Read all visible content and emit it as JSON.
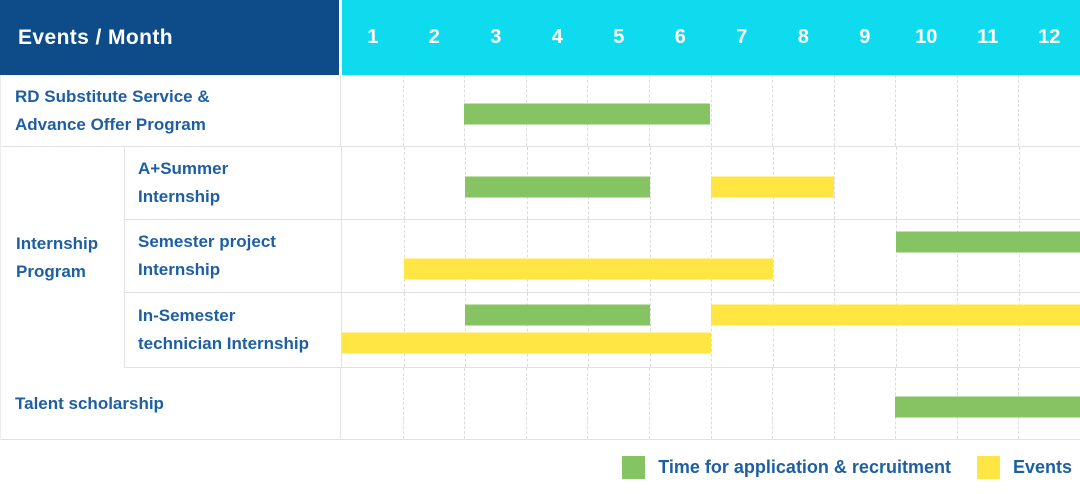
{
  "title": "Events / Month",
  "months": [
    "1",
    "2",
    "3",
    "4",
    "5",
    "6",
    "7",
    "8",
    "9",
    "10",
    "11",
    "12"
  ],
  "colors": {
    "header_navy": "#0d4c88",
    "header_cyan": "#0edcee",
    "text_blue": "#1e5fa4",
    "application_green": "#85c363",
    "event_yellow": "#ffe642",
    "gridline": "#dcdcdc"
  },
  "chart_data": {
    "type": "gantt",
    "title": "Events / Month",
    "x_axis": {
      "label": "Month",
      "ticks": [
        "1",
        "2",
        "3",
        "4",
        "5",
        "6",
        "7",
        "8",
        "9",
        "10",
        "11",
        "12"
      ],
      "range": [
        1,
        12
      ]
    },
    "grid": true,
    "legend_position": "bottom-right",
    "sections": [
      {
        "label_lines": [
          "RD Substitute Service &",
          "Advance Offer Program"
        ],
        "bars": [
          [
            {
              "kind": "application",
              "start": 3,
              "end": 6
            }
          ]
        ]
      },
      {
        "label_lines": [
          "Internship",
          "Program"
        ],
        "rows": [
          {
            "label_lines": [
              "A+Summer",
              "Internship"
            ],
            "bars": [
              [
                {
                  "kind": "application",
                  "start": 3,
                  "end": 5
                },
                {
                  "kind": "event",
                  "start": 7,
                  "end": 8
                }
              ]
            ]
          },
          {
            "label_lines": [
              "Semester project",
              "Internship"
            ],
            "bars": [
              [
                {
                  "kind": "application",
                  "start": 10,
                  "end": 12
                }
              ],
              [
                {
                  "kind": "event",
                  "start": 2,
                  "end": 7
                }
              ]
            ]
          },
          {
            "label_lines": [
              "In-Semester",
              "technician Internship"
            ],
            "bars": [
              [
                {
                  "kind": "application",
                  "start": 3,
                  "end": 5
                },
                {
                  "kind": "event",
                  "start": 7,
                  "end": 12
                }
              ],
              [
                {
                  "kind": "event",
                  "start": 1,
                  "end": 6
                }
              ]
            ]
          }
        ]
      },
      {
        "label_lines": [
          "Talent scholarship"
        ],
        "bars": [
          [
            {
              "kind": "application",
              "start": 10,
              "end": 12
            }
          ]
        ]
      }
    ],
    "legend": [
      {
        "kind": "application",
        "label": "Time for application & recruitment",
        "color": "#85c363"
      },
      {
        "kind": "event",
        "label": "Events",
        "color": "#ffe642"
      }
    ]
  }
}
